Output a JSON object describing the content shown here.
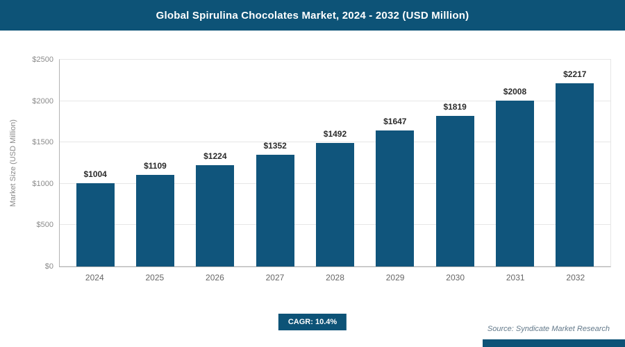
{
  "chart_data": {
    "type": "bar",
    "title": "Global Spirulina Chocolates Market, 2024 - 2032 (USD Million)",
    "categories": [
      "2024",
      "2025",
      "2026",
      "2027",
      "2028",
      "2029",
      "2030",
      "2031",
      "2032"
    ],
    "values": [
      1004,
      1109,
      1224,
      1352,
      1492,
      1647,
      1819,
      2008,
      2217
    ],
    "value_labels": [
      "$1004",
      "$1109",
      "$1224",
      "$1352",
      "$1492",
      "$1647",
      "$1819",
      "$2008",
      "$2217"
    ],
    "xlabel": "",
    "ylabel": "Market Size (USD Million)",
    "ylim": [
      0,
      2500
    ],
    "yticks": [
      0,
      500,
      1000,
      1500,
      2000,
      2500
    ],
    "ytick_labels": [
      "$0",
      "$500",
      "$1000",
      "$1500",
      "$2000",
      "$2500"
    ],
    "grid": true,
    "legend": "none",
    "bar_color": "#10557c",
    "cagr_label": "CAGR: 10.4%",
    "source": "Source: Syndicate Market Research"
  },
  "colors": {
    "title_bar_bg": "#0d5377",
    "title_text": "#ffffff",
    "bar": "#10557c",
    "gridline": "#e6e6e6",
    "axis_line": "#b3b3b3",
    "tick_text": "#8a8a8a",
    "value_text": "#2b2b2b",
    "footer_strip": "#0d5377"
  }
}
